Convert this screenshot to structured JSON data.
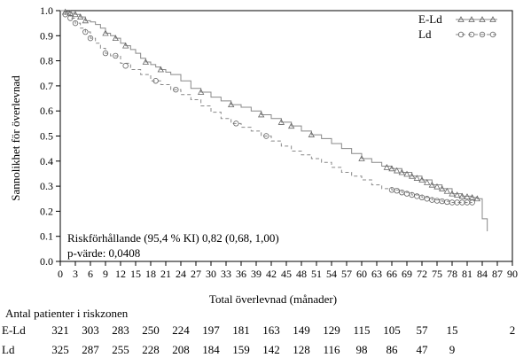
{
  "chart_data": {
    "type": "line",
    "subtype": "kaplan-meier",
    "xlabel": "Total överlevnad (månader)",
    "ylabel": "Sannolikhet för överlevnad",
    "xlim": [
      0,
      90
    ],
    "ylim": [
      0.0,
      1.0
    ],
    "xticks": [
      "0",
      "3",
      "6",
      "9",
      "12",
      "15",
      "18",
      "21",
      "24",
      "27",
      "30",
      "33",
      "36",
      "39",
      "42",
      "45",
      "48",
      "51",
      "54",
      "57",
      "60",
      "63",
      "66",
      "69",
      "72",
      "75",
      "78",
      "81",
      "84",
      "87",
      "90"
    ],
    "yticks": [
      "0.0",
      "0.1",
      "0.2",
      "0.3",
      "0.4",
      "0.5",
      "0.6",
      "0.7",
      "0.8",
      "0.9",
      "1.0"
    ],
    "grid": false,
    "legend_position": "top-right",
    "annotations": {
      "hazard_ratio": "Riskförhållande (95,4 % KI) 0,82 (0,68, 1,00)",
      "p_value": "p-värde: 0,0408"
    },
    "series": [
      {
        "name": "E-Ld",
        "color": "#888888",
        "dash": "solid",
        "marker": "triangle",
        "x": [
          0,
          1,
          2,
          3,
          4,
          5,
          6,
          7,
          8,
          9,
          10,
          11,
          12,
          13,
          14,
          15,
          16,
          17,
          18,
          19,
          20,
          21,
          22,
          24,
          26,
          28,
          30,
          32,
          34,
          36,
          38,
          40,
          42,
          44,
          46,
          48,
          50,
          52,
          54,
          56,
          58,
          60,
          62,
          64,
          66,
          68,
          70,
          72,
          74,
          76,
          78,
          80,
          82,
          83,
          84,
          85
        ],
        "y": [
          1.0,
          0.995,
          0.99,
          0.985,
          0.975,
          0.96,
          0.955,
          0.945,
          0.93,
          0.91,
          0.9,
          0.89,
          0.87,
          0.86,
          0.845,
          0.83,
          0.81,
          0.795,
          0.785,
          0.775,
          0.765,
          0.755,
          0.745,
          0.72,
          0.69,
          0.675,
          0.655,
          0.64,
          0.625,
          0.615,
          0.6,
          0.585,
          0.57,
          0.555,
          0.54,
          0.52,
          0.505,
          0.49,
          0.47,
          0.45,
          0.43,
          0.41,
          0.395,
          0.38,
          0.37,
          0.355,
          0.34,
          0.325,
          0.305,
          0.29,
          0.27,
          0.26,
          0.255,
          0.25,
          0.17,
          0.12
        ],
        "markers_x": [
          1,
          2,
          3,
          4,
          5,
          9,
          11,
          13,
          17,
          20,
          28,
          34,
          40,
          44,
          46,
          50,
          60,
          65,
          66,
          67,
          68,
          69,
          70,
          71,
          72,
          73,
          74,
          75,
          76,
          77,
          78,
          79,
          80,
          81,
          82,
          83
        ],
        "markers_y": [
          0.995,
          0.99,
          0.985,
          0.975,
          0.96,
          0.91,
          0.89,
          0.86,
          0.795,
          0.765,
          0.675,
          0.625,
          0.585,
          0.555,
          0.54,
          0.505,
          0.41,
          0.375,
          0.37,
          0.362,
          0.355,
          0.348,
          0.34,
          0.332,
          0.325,
          0.315,
          0.305,
          0.298,
          0.29,
          0.28,
          0.27,
          0.265,
          0.26,
          0.258,
          0.255,
          0.25
        ],
        "at_risk": [
          "321",
          "303",
          "283",
          "250",
          "224",
          "197",
          "181",
          "163",
          "149",
          "129",
          "115",
          "105",
          "57",
          "15",
          "",
          "2"
        ]
      },
      {
        "name": "Ld",
        "color": "#888888",
        "dash": "dashed",
        "marker": "circle",
        "x": [
          0,
          1,
          2,
          3,
          4,
          5,
          6,
          7,
          8,
          9,
          10,
          12,
          14,
          16,
          18,
          20,
          22,
          24,
          26,
          28,
          30,
          32,
          34,
          36,
          38,
          40,
          42,
          44,
          46,
          48,
          50,
          52,
          54,
          56,
          58,
          60,
          62,
          64,
          66,
          68,
          70,
          72,
          74,
          76,
          78,
          80,
          82
        ],
        "y": [
          1.0,
          0.985,
          0.97,
          0.95,
          0.93,
          0.915,
          0.89,
          0.87,
          0.85,
          0.83,
          0.82,
          0.79,
          0.765,
          0.745,
          0.72,
          0.705,
          0.685,
          0.665,
          0.645,
          0.62,
          0.595,
          0.57,
          0.55,
          0.535,
          0.52,
          0.5,
          0.48,
          0.46,
          0.44,
          0.425,
          0.41,
          0.395,
          0.375,
          0.355,
          0.34,
          0.325,
          0.305,
          0.29,
          0.285,
          0.275,
          0.265,
          0.255,
          0.245,
          0.24,
          0.235,
          0.235,
          0.235
        ],
        "markers_x": [
          1,
          2,
          3,
          5,
          6,
          9,
          11,
          13,
          19,
          23,
          35,
          41,
          66,
          67,
          68,
          69,
          70,
          71,
          72,
          73,
          74,
          75,
          76,
          77,
          78,
          79,
          80,
          81,
          82
        ],
        "markers_y": [
          0.985,
          0.97,
          0.95,
          0.915,
          0.89,
          0.83,
          0.82,
          0.78,
          0.72,
          0.685,
          0.55,
          0.5,
          0.285,
          0.282,
          0.275,
          0.27,
          0.265,
          0.26,
          0.255,
          0.25,
          0.245,
          0.242,
          0.24,
          0.237,
          0.235,
          0.235,
          0.235,
          0.235,
          0.235
        ],
        "at_risk": [
          "325",
          "287",
          "255",
          "228",
          "208",
          "184",
          "159",
          "142",
          "128",
          "116",
          "98",
          "86",
          "47",
          "9"
        ]
      }
    ],
    "at_risk_table": {
      "title": "Antal patienter i riskzonen",
      "rows": [
        {
          "label": "E-Ld",
          "values": [
            "321",
            "303",
            "283",
            "250",
            "224",
            "197",
            "181",
            "163",
            "149",
            "129",
            "115",
            "105",
            "57",
            "15",
            "",
            "2"
          ]
        },
        {
          "label": "Ld",
          "values": [
            "325",
            "287",
            "255",
            "228",
            "208",
            "184",
            "159",
            "142",
            "128",
            "116",
            "98",
            "86",
            "47",
            "9"
          ]
        }
      ]
    }
  }
}
